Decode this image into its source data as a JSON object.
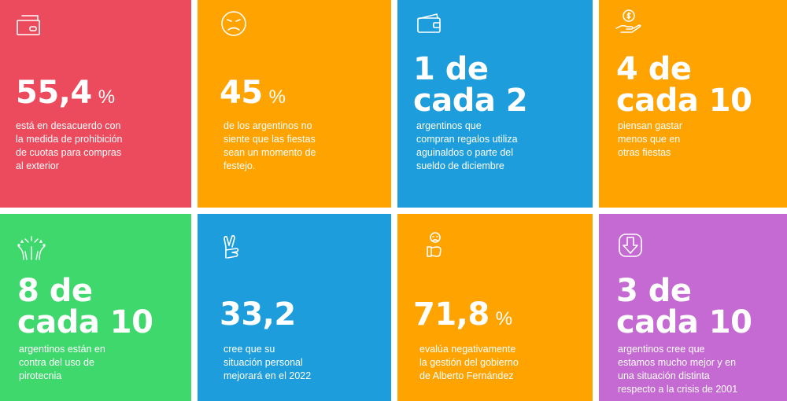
{
  "colors": {
    "red": "#ec4a5d",
    "orange": "#ffa300",
    "blue": "#1d9ddb",
    "green": "#3fd86d",
    "purple": "#c46ad2"
  },
  "tiles": [
    {
      "icon": "card-slot-icon",
      "big": [
        "55,4"
      ],
      "unit": "%",
      "desc": [
        "está en desacuerdo con",
        "la medida de prohibición",
        "de cuotas para compras",
        "al exterior"
      ]
    },
    {
      "icon": "sad-face-icon",
      "big": [
        "45"
      ],
      "unit": "%",
      "desc": [
        "de los argentinos no",
        "siente que las fiestas",
        "sean un momento de",
        "festejo."
      ]
    },
    {
      "icon": "wallet-icon",
      "big": [
        "1 de",
        "cada 2"
      ],
      "unit": "",
      "desc": [
        "argentinos que",
        "compran regalos utiliza",
        "aguinaldos o parte del",
        "sueldo de diciembre"
      ]
    },
    {
      "icon": "hand-coin-icon",
      "big": [
        "4 de",
        "cada 10"
      ],
      "unit": "",
      "desc": [
        "piensan gastar",
        "menos que en",
        "otras fiestas"
      ]
    },
    {
      "icon": "fireworks-icon",
      "big": [
        "8 de",
        "cada 10"
      ],
      "unit": "",
      "desc": [
        "argentinos están en",
        "contra del uso de",
        "pirotecnia"
      ]
    },
    {
      "icon": "crossed-fingers-icon",
      "big": [
        "33,2"
      ],
      "unit": "",
      "desc": [
        "cree que su",
        "situación personal",
        "mejorará en el 2022"
      ]
    },
    {
      "icon": "thumbs-down-icon",
      "big": [
        "71,8"
      ],
      "unit": "%",
      "desc": [
        "evalúa negativamente",
        "la gestión del gobierno",
        "de Alberto Fernández"
      ]
    },
    {
      "icon": "down-arrow-box-icon",
      "big": [
        "3 de",
        "cada 10"
      ],
      "unit": "",
      "desc": [
        "argentinos cree que",
        "estamos mucho mejor y en",
        "una situación distinta",
        "respecto a la crisis de 2001"
      ]
    }
  ]
}
